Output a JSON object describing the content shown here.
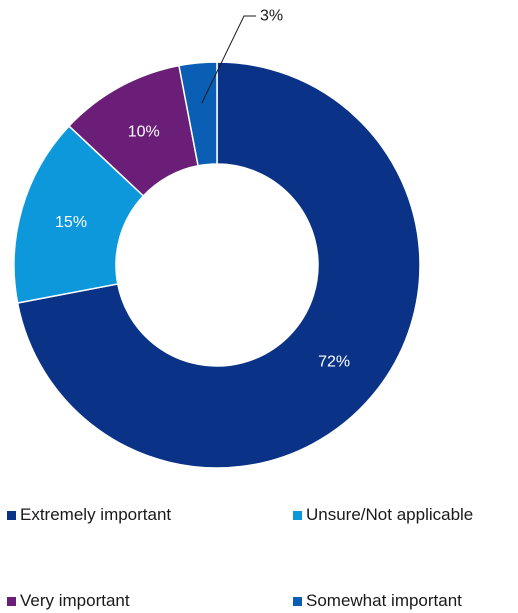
{
  "chart_data": {
    "type": "pie",
    "variant": "donut",
    "title": "",
    "slices": [
      {
        "label": "Extremely important",
        "value": 72,
        "display": "72%",
        "color": "#0a3387"
      },
      {
        "label": "Unsure/Not applicable",
        "value": 15,
        "display": "15%",
        "color": "#0e98dc"
      },
      {
        "label": "Very important",
        "value": 10,
        "display": "10%",
        "color": "#6a1e78"
      },
      {
        "label": "Somewhat important",
        "value": 3,
        "display": "3%",
        "color": "#0a5fb4"
      }
    ],
    "legend": {
      "placement": "bottom",
      "items": [
        {
          "label": "Extremely important",
          "color": "#0a3387"
        },
        {
          "label": "Unsure/Not applicable",
          "color": "#0e98dc"
        },
        {
          "label": "Very important",
          "color": "#6a1e78"
        },
        {
          "label": "Somewhat important",
          "color": "#0a5fb4"
        }
      ]
    }
  }
}
